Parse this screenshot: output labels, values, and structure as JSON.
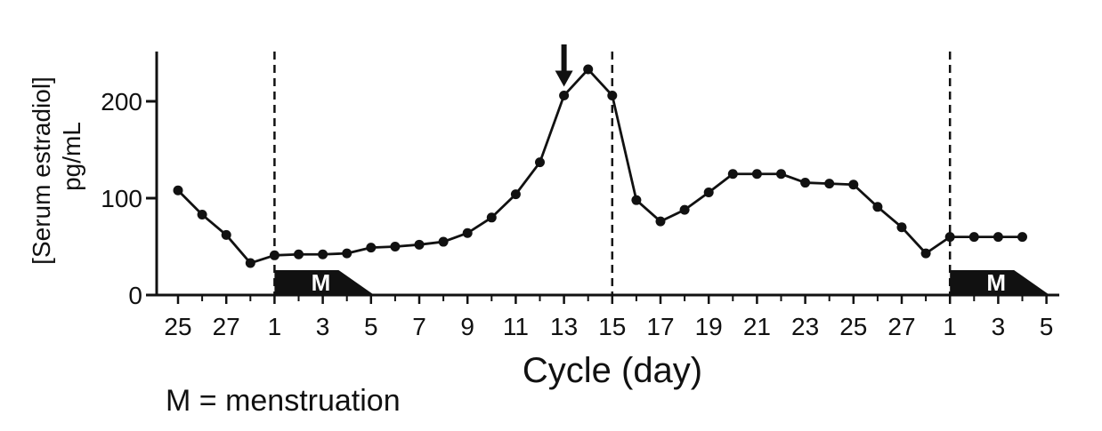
{
  "chart_data": {
    "type": "line",
    "xlabel": "Cycle (day)",
    "ylabel": [
      "[Serum estradiol]",
      "pg/mL"
    ],
    "ylim": [
      0,
      250
    ],
    "yticks": [
      0,
      100,
      200
    ],
    "x_tick_labels": [
      "25",
      "27",
      "1",
      "3",
      "5",
      "7",
      "9",
      "11",
      "13",
      "15",
      "17",
      "19",
      "21",
      "23",
      "25",
      "27",
      "1",
      "3",
      "5"
    ],
    "series": [
      {
        "values": [
          108,
          83,
          62,
          33,
          41,
          42,
          42,
          43,
          49,
          50,
          52,
          55,
          64,
          80,
          104,
          137,
          206,
          233,
          206,
          98,
          76,
          88,
          106,
          125,
          125,
          125,
          116,
          115,
          114,
          91,
          70,
          43,
          60,
          60,
          60,
          60
        ]
      }
    ],
    "menstruation_label": "M",
    "dashed_lines_at_cycle_days": [
      1,
      15,
      1
    ],
    "arrow_at_cycle_day": 13,
    "footnote": "M = menstruation"
  }
}
